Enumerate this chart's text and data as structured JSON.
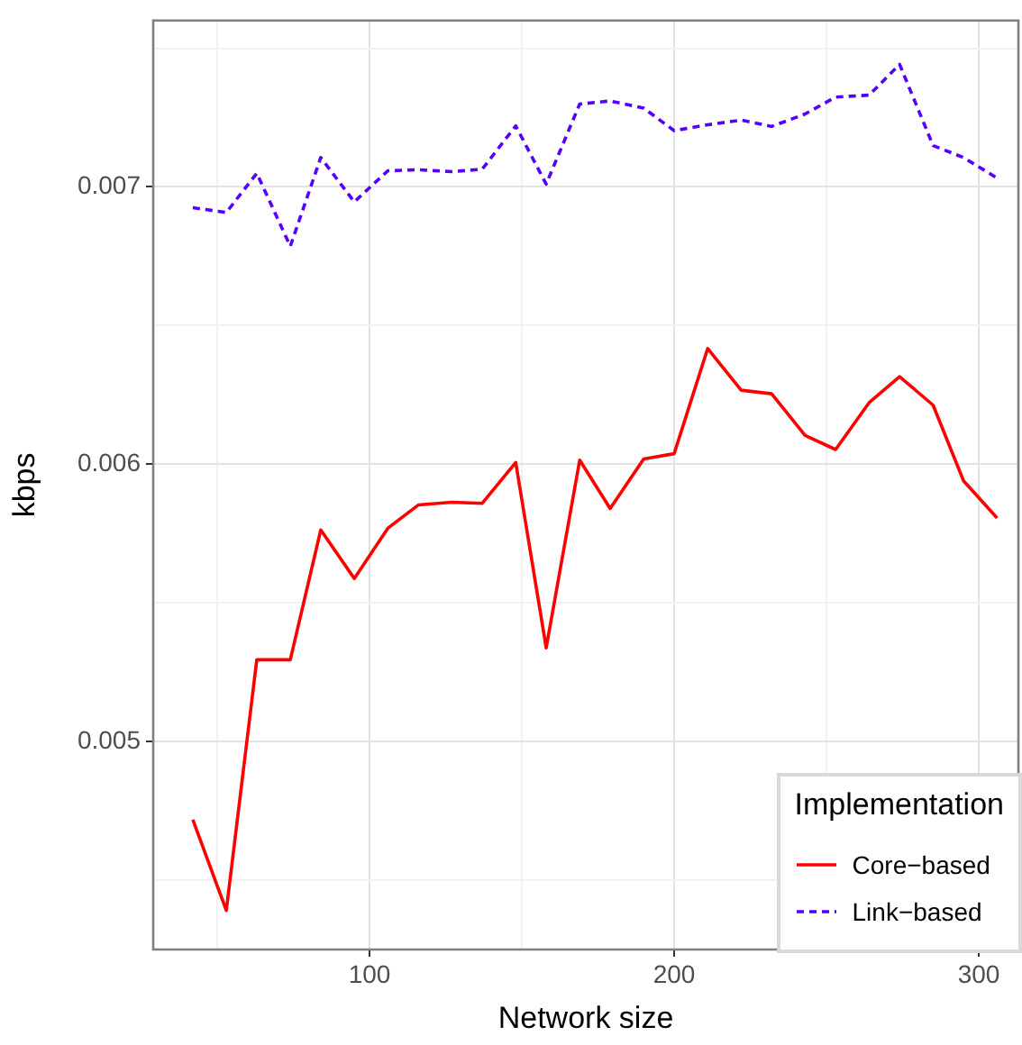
{
  "chart_data": {
    "type": "line",
    "xlabel": "Network size",
    "ylabel": "kbps",
    "legend_title": "Implementation",
    "legend": "bottom right",
    "grid": true,
    "x": [
      42,
      53,
      63,
      74,
      84,
      95,
      106,
      116,
      127,
      137,
      148,
      158,
      169,
      179,
      190,
      200,
      211,
      222,
      232,
      243,
      253,
      264,
      274,
      285,
      295,
      306
    ],
    "series": [
      {
        "name": "Core−based",
        "color": "#ff0000",
        "line_style": "solid",
        "values": [
          0.004718,
          0.004391,
          0.005295,
          0.005295,
          0.005763,
          0.005588,
          0.005769,
          0.005853,
          0.005863,
          0.005859,
          0.006006,
          0.005338,
          0.006015,
          0.00584,
          0.006019,
          0.006038,
          0.006417,
          0.006267,
          0.006254,
          0.006104,
          0.006053,
          0.006222,
          0.006316,
          0.006213,
          0.00594,
          0.005806
        ]
      },
      {
        "name": "Link−based",
        "color": "#5500ff",
        "line_style": "dashed",
        "values": [
          0.006925,
          0.006908,
          0.007049,
          0.006786,
          0.007106,
          0.006946,
          0.007058,
          0.007062,
          0.007055,
          0.007064,
          0.00722,
          0.00701,
          0.007299,
          0.00731,
          0.007284,
          0.007203,
          0.007224,
          0.007241,
          0.007218,
          0.007263,
          0.007324,
          0.007331,
          0.007442,
          0.007149,
          0.007106,
          0.007032
        ]
      }
    ],
    "xlim": [
      29,
      313
    ],
    "xticks": [
      {
        "value": 50,
        "label": null
      },
      100,
      {
        "value": 150,
        "label": null
      },
      200,
      {
        "value": 250,
        "label": null
      },
      300
    ],
    "ylim": [
      0.00425,
      0.0076
    ],
    "yticks": [
      {
        "value": 0.0045,
        "label": null
      },
      0.005,
      {
        "value": 0.0055,
        "label": null
      },
      0.006,
      {
        "value": 0.0065,
        "label": null
      },
      0.007,
      {
        "value": 0.0075,
        "label": null
      }
    ]
  }
}
